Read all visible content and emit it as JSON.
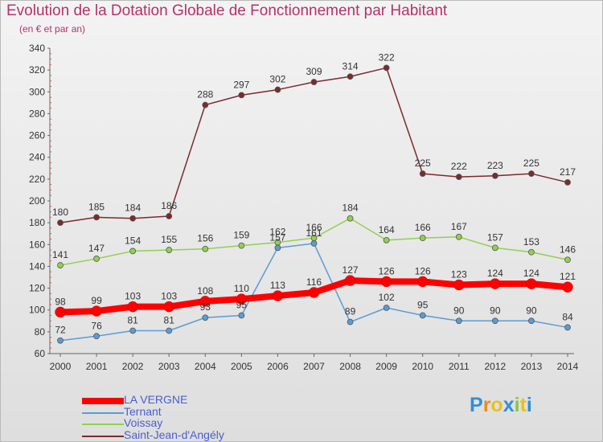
{
  "title": "Evolution de la Dotation Globale de Fonctionnement par Habitant",
  "subtitle": "(en € et par an)",
  "logo": {
    "text": "Proxiti",
    "letter_colors": [
      "#2f8fd8",
      "#f08a1c",
      "#e8c21a",
      "#2f8fd8",
      "#8dc63f",
      "#e8c21a",
      "#2f8fd8"
    ]
  },
  "chart_data": {
    "type": "line",
    "title": "Evolution de la Dotation Globale de Fonctionnement par Habitant",
    "subtitle": "(en € et par an)",
    "xlabel": "",
    "ylabel": "",
    "x": [
      "2000",
      "2001",
      "2002",
      "2003",
      "2004",
      "2005",
      "2006",
      "2007",
      "2008",
      "2009",
      "2010",
      "2011",
      "2012",
      "2013",
      "2014"
    ],
    "ylim": [
      60,
      340
    ],
    "yticks": [
      60,
      80,
      100,
      120,
      140,
      160,
      180,
      200,
      220,
      240,
      260,
      280,
      300,
      320,
      340
    ],
    "grid": false,
    "legend_position": "bottom-left",
    "series": [
      {
        "name": "LA VERGNE",
        "color": "#ff0000",
        "values": [
          98,
          99,
          103,
          103,
          108,
          110,
          113,
          116,
          127,
          126,
          126,
          123,
          124,
          124,
          121
        ]
      },
      {
        "name": "Ternant",
        "color": "#5b9bd5",
        "values": [
          72,
          76,
          81,
          81,
          93,
          95,
          157,
          161,
          89,
          102,
          95,
          90,
          90,
          90,
          84
        ],
        "labels": [
          "72",
          "76",
          "81",
          "81",
          "93",
          "95",
          "157",
          "161",
          "89",
          "102",
          "95",
          "90",
          "90",
          "90",
          "84"
        ]
      },
      {
        "name": "Voissay",
        "color": "#92d050",
        "values": [
          141,
          147,
          154,
          155,
          156,
          159,
          162,
          166,
          184,
          164,
          166,
          167,
          157,
          153,
          146
        ],
        "labels": [
          "141",
          "147",
          "154",
          "155",
          "156",
          "159",
          "162",
          "166",
          "184",
          "164",
          "166",
          "167",
          "157",
          "153",
          "146"
        ]
      },
      {
        "name": "Saint-Jean-d'Angély",
        "color": "#7b2a2e",
        "values": [
          180,
          185,
          184,
          186,
          288,
          297,
          302,
          309,
          314,
          322,
          225,
          222,
          223,
          225,
          217
        ]
      }
    ]
  }
}
